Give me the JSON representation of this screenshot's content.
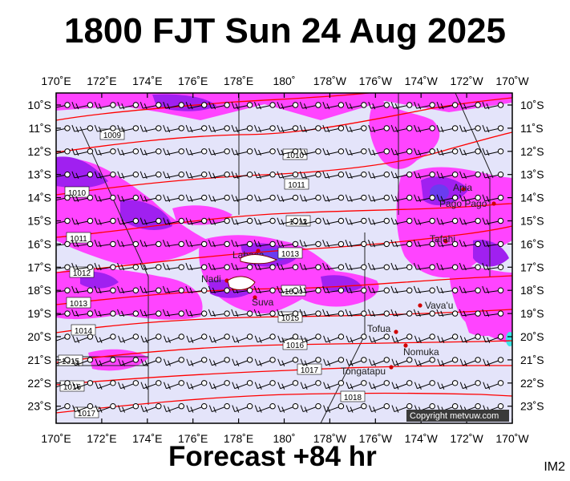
{
  "title": "1800 FJT Sun 24 Aug 2025",
  "footer": "Forecast +84 hr",
  "tag": "IM2",
  "copyright": "Copyright metvuw.com",
  "map": {
    "lon_labels": [
      "170˚E",
      "172˚E",
      "174˚E",
      "176˚E",
      "178˚E",
      "180˚",
      "178˚W",
      "176˚W",
      "174˚W",
      "172˚W",
      "170˚W"
    ],
    "lat_labels": [
      "10˚S",
      "11˚S",
      "12˚S",
      "13˚S",
      "14˚S",
      "15˚S",
      "16˚S",
      "17˚S",
      "18˚S",
      "19˚S",
      "20˚S",
      "21˚S",
      "22˚S",
      "23˚S"
    ],
    "isobar_labels": [
      "1009",
      "1010",
      "1010",
      "1011",
      "1011",
      "1012",
      "1012",
      "1013",
      "1013",
      "1014",
      "1014",
      "1015",
      "1015",
      "1016",
      "1016",
      "1017",
      "1017",
      "1018"
    ],
    "places": [
      {
        "name": "Apia"
      },
      {
        "name": "Pago Pago"
      },
      {
        "name": "Tafahi"
      },
      {
        "name": "Labasa"
      },
      {
        "name": "Nadi"
      },
      {
        "name": "Suva"
      },
      {
        "name": "Vava'u"
      },
      {
        "name": "Tofua"
      },
      {
        "name": "Nomuka"
      },
      {
        "name": "Tongatapu"
      }
    ],
    "colors": {
      "background": "#e4e4fa",
      "precip_light": "#ff44ff",
      "precip_heavy": "#a020f0",
      "precip_core": "#6a3cf0",
      "isobar": "#ff0000",
      "wind_barb": "#000000"
    }
  }
}
